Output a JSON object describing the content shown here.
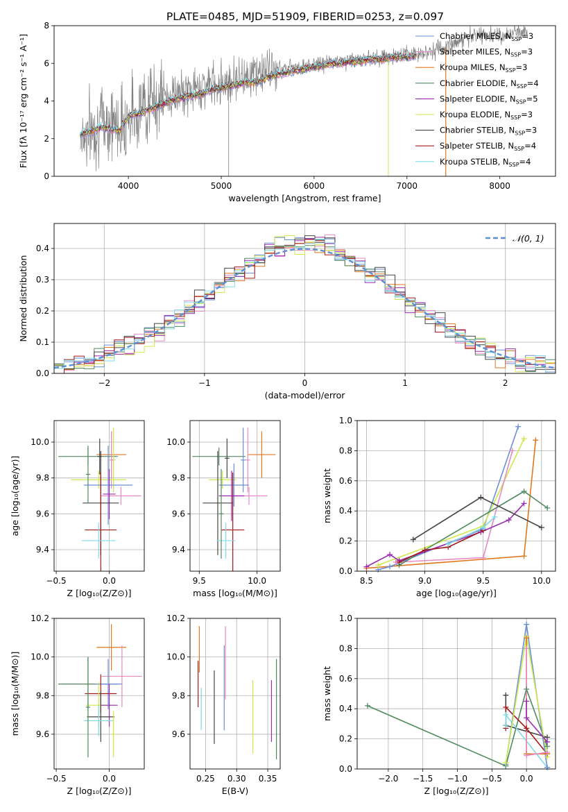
{
  "figure": {
    "title": "PLATE=0485, MJD=51909, FIBERID=0253, z=0.097"
  },
  "chart_data": [
    {
      "id": "spectrum",
      "type": "line",
      "xlabel": "wavelength [Angstrom, rest frame]",
      "ylabel": "Flux [fλ 10⁻¹⁷ erg cm⁻² s⁻¹ A⁻¹]",
      "xlim": [
        3200,
        8600
      ],
      "ylim": [
        0,
        8
      ],
      "xticks": [
        4000,
        5000,
        6000,
        7000,
        8000
      ],
      "yticks": [
        0,
        2,
        4,
        6,
        8
      ],
      "xticklabels": [
        "4000",
        "5000",
        "6000",
        "7000",
        "8000"
      ],
      "yticklabels": [
        "0",
        "2",
        "4",
        "6",
        "8"
      ],
      "grid": false,
      "legend_position": "right",
      "data_color": "#808080",
      "data_x": [
        3480,
        3600,
        3700,
        3800,
        3900,
        4000,
        4100,
        4200,
        4300,
        4400,
        4500,
        4600,
        4700,
        4800,
        4900,
        5000,
        5100,
        5200,
        5300,
        5400,
        5500,
        5600,
        5700,
        5800,
        5900,
        6000,
        6100,
        6200,
        6300,
        6400,
        6500,
        6600,
        6700,
        6800,
        6900,
        7000,
        7100,
        7200,
        7300,
        7400,
        7500,
        7600,
        7700,
        7800,
        7900,
        8000,
        8100,
        8200,
        8300
      ],
      "data_y": [
        2.1,
        2.5,
        2.8,
        3.0,
        2.7,
        3.2,
        3.5,
        3.9,
        4.1,
        4.2,
        4.3,
        4.4,
        4.6,
        4.8,
        4.9,
        5.0,
        5.1,
        5.3,
        5.4,
        5.5,
        5.6,
        5.7,
        5.8,
        5.9,
        5.8,
        5.9,
        6.0,
        6.1,
        6.1,
        6.2,
        6.2,
        6.3,
        6.3,
        6.4,
        6.4,
        6.4,
        6.5,
        6.6,
        6.7,
        6.8,
        7.1,
        7.3,
        7.4,
        7.5,
        7.5,
        7.4,
        7.5,
        7.7,
        7.6
      ],
      "model_x": [
        3480,
        3600,
        3700,
        3800,
        3900,
        4000,
        4100,
        4200,
        4300,
        4400,
        4500,
        4600,
        4700,
        4800,
        4900,
        5000,
        5100,
        5200,
        5300,
        5400,
        5500,
        5600,
        5700,
        5800,
        5900,
        6000,
        6100,
        6200,
        6300,
        6400,
        6500,
        6600,
        6700,
        6800,
        6900,
        7000,
        7100
      ],
      "model_y": [
        2.2,
        2.4,
        2.6,
        2.5,
        2.4,
        3.2,
        3.3,
        3.5,
        3.7,
        3.9,
        4.1,
        4.2,
        4.3,
        4.4,
        4.6,
        4.7,
        4.8,
        4.9,
        5.0,
        5.0,
        5.3,
        5.4,
        5.5,
        5.6,
        5.7,
        5.8,
        5.9,
        6.0,
        6.0,
        6.1,
        6.1,
        6.2,
        6.2,
        6.3,
        6.3,
        6.3,
        6.4
      ],
      "series": [
        {
          "name": "Chabrier MILES, N_SSP=3",
          "label_main": "Chabrier MILES, N",
          "label_sub": "SSP",
          "label_tail": "=3",
          "color": "#6a8fd6"
        },
        {
          "name": "Salpeter MILES, N_SSP=3",
          "label_main": "Salpeter MILES, N",
          "label_sub": "SSP",
          "label_tail": "=3",
          "color": "#e78ac3"
        },
        {
          "name": "Kroupa MILES, N_SSP=3",
          "label_main": "Kroupa MILES, N",
          "label_sub": "SSP",
          "label_tail": "=3",
          "color": "#e0771e"
        },
        {
          "name": "Chabrier ELODIE, N_SSP=4",
          "label_main": "Chabrier ELODIE, N",
          "label_sub": "SSP",
          "label_tail": "=4",
          "color": "#4f8a5e"
        },
        {
          "name": "Salpeter ELODIE, N_SSP=5",
          "label_main": "Salpeter ELODIE, N",
          "label_sub": "SSP",
          "label_tail": "=5",
          "color": "#9a2ab0"
        },
        {
          "name": "Kroupa ELODIE, N_SSP=3",
          "label_main": "Kroupa ELODIE, N",
          "label_sub": "SSP",
          "label_tail": "=3",
          "color": "#cde84a"
        },
        {
          "name": "Chabrier STELIB, N_SSP=3",
          "label_main": "Chabrier STELIB, N",
          "label_sub": "SSP",
          "label_tail": "=3",
          "color": "#444444"
        },
        {
          "name": "Salpeter STELIB, N_SSP=4",
          "label_main": "Salpeter STELIB, N",
          "label_sub": "SSP",
          "label_tail": "=4",
          "color": "#a01818"
        },
        {
          "name": "Kroupa STELIB, N_SSP=4",
          "label_main": "Kroupa STELIB, N",
          "label_sub": "SSP",
          "label_tail": "=4",
          "color": "#7fd9e8"
        }
      ]
    },
    {
      "id": "residuals",
      "type": "line",
      "xlabel": "(data-model)/error",
      "ylabel": "Normed distribution",
      "xlim": [
        -2.5,
        2.5
      ],
      "ylim": [
        0,
        0.48
      ],
      "xticks": [
        -2,
        -1,
        0,
        1,
        2
      ],
      "yticks": [
        0,
        0.1,
        0.2,
        0.3,
        0.4
      ],
      "xticklabels": [
        "−2",
        "−1",
        "0",
        "1",
        "2"
      ],
      "yticklabels": [
        "0.0",
        "0.1",
        "0.2",
        "0.3",
        "0.4"
      ],
      "grid": true,
      "legend_position": "top-right",
      "gaussian_label": "𝒩(0, 1)",
      "gaussian_color": "#5b8fd6"
    },
    {
      "id": "age-vs-Z",
      "type": "scatter",
      "xlabel": "Z [log₁₀(Z/Z⊙)]",
      "ylabel": "age  [log₁₀(age/yr)]",
      "xlim": [
        -0.52,
        0.33
      ],
      "ylim": [
        9.28,
        10.12
      ],
      "xticks": [
        -0.5,
        0.0
      ],
      "xticklabels": [
        "−0.5",
        "0.0"
      ],
      "yticks": [
        9.4,
        9.6,
        9.8,
        10.0
      ],
      "yticklabels": [
        "9.4",
        "9.6",
        "9.8",
        "10.0"
      ],
      "grid": true,
      "points": [
        {
          "x": 0.02,
          "y": 9.93,
          "xerr": 0.14,
          "yerr": 0.13,
          "color": "#e0771e"
        },
        {
          "x": -0.2,
          "y": 9.92,
          "xerr": 0.28,
          "yerr": 0.05,
          "color": "#4f8a5e"
        },
        {
          "x": -0.09,
          "y": 9.92,
          "xerr": 0.02,
          "yerr": 0.1,
          "color": "#444444"
        },
        {
          "x": 0.04,
          "y": 9.9,
          "xerr": 0.02,
          "yerr": 0.18,
          "color": "#cde84a"
        },
        {
          "x": 0.02,
          "y": 9.9,
          "xerr": 0.02,
          "yerr": 0.16,
          "color": "#e78ac3"
        },
        {
          "x": -0.1,
          "y": 9.79,
          "xerr": 0.26,
          "yerr": 0.05,
          "color": "#cde84a"
        },
        {
          "x": -0.01,
          "y": 9.76,
          "xerr": 0.23,
          "yerr": 0.22,
          "color": "#6a8fd6"
        },
        {
          "x": 0.11,
          "y": 9.7,
          "xerr": 0.19,
          "yerr": 0.05,
          "color": "#e78ac3"
        },
        {
          "x": 0.0,
          "y": 9.71,
          "xerr": 0.06,
          "yerr": 0.14,
          "color": "#9a2ab0"
        },
        {
          "x": -0.08,
          "y": 9.66,
          "xerr": 0.17,
          "yerr": 0.29,
          "color": "#444444"
        },
        {
          "x": -0.08,
          "y": 9.51,
          "xerr": 0.15,
          "yerr": 0.32,
          "color": "#a01818"
        },
        {
          "x": -0.1,
          "y": 9.45,
          "xerr": 0.16,
          "yerr": 0.1,
          "color": "#7fd9e8"
        },
        {
          "x": -0.2,
          "y": 9.82,
          "xerr": 0.02,
          "yerr": 0.16,
          "color": "#4f8a5e"
        }
      ]
    },
    {
      "id": "age-vs-mass",
      "type": "scatter",
      "xlabel": "mass [log₁₀(M/M⊙)]",
      "ylabel": "",
      "xlim": [
        9.42,
        10.2
      ],
      "ylim": [
        9.28,
        10.12
      ],
      "xticks": [
        9.5,
        10.0
      ],
      "xticklabels": [
        "9.5",
        "10.0"
      ],
      "yticks": [
        9.4,
        9.6,
        9.8,
        10.0
      ],
      "yticklabels": [
        "9.4",
        "9.6",
        "9.8",
        "10.0"
      ],
      "grid": true,
      "points": [
        {
          "x": 10.04,
          "y": 9.93,
          "xerr": 0.12,
          "yerr": 0.13,
          "color": "#e0771e"
        },
        {
          "x": 9.67,
          "y": 9.92,
          "xerr": 0.23,
          "yerr": 0.05,
          "color": "#4f8a5e"
        },
        {
          "x": 9.74,
          "y": 9.91,
          "xerr": 0.02,
          "yerr": 0.11,
          "color": "#444444"
        },
        {
          "x": 9.92,
          "y": 9.9,
          "xerr": 0.02,
          "yerr": 0.18,
          "color": "#e78ac3"
        },
        {
          "x": 9.88,
          "y": 9.9,
          "xerr": 0.02,
          "yerr": 0.18,
          "color": "#6a8fd6"
        },
        {
          "x": 9.7,
          "y": 9.79,
          "xerr": 0.12,
          "yerr": 0.05,
          "color": "#cde84a"
        },
        {
          "x": 9.8,
          "y": 9.76,
          "xerr": 0.13,
          "yerr": 0.12,
          "color": "#6a8fd6"
        },
        {
          "x": 9.93,
          "y": 9.7,
          "xerr": 0.16,
          "yerr": 0.05,
          "color": "#e78ac3"
        },
        {
          "x": 9.78,
          "y": 9.7,
          "xerr": 0.11,
          "yerr": 0.14,
          "color": "#9a2ab0"
        },
        {
          "x": 9.66,
          "y": 9.66,
          "xerr": 0.13,
          "yerr": 0.29,
          "color": "#444444"
        },
        {
          "x": 9.79,
          "y": 9.51,
          "xerr": 0.1,
          "yerr": 0.32,
          "color": "#a01818"
        },
        {
          "x": 9.73,
          "y": 9.45,
          "xerr": 0.08,
          "yerr": 0.1,
          "color": "#7fd9e8"
        },
        {
          "x": 9.69,
          "y": 9.6,
          "xerr": 0.02,
          "yerr": 0.25,
          "color": "#4f8a5e"
        }
      ]
    },
    {
      "id": "weight-vs-age",
      "type": "line",
      "xlabel": "age  [log₁₀(age/yr)]",
      "ylabel": "mass weight",
      "xlim": [
        8.42,
        10.12
      ],
      "ylim": [
        0,
        1.0
      ],
      "xticks": [
        8.5,
        9.0,
        9.5,
        10.0
      ],
      "xticklabels": [
        "8.5",
        "9.0",
        "9.5",
        "10.0"
      ],
      "yticks": [
        0,
        0.2,
        0.4,
        0.6,
        0.8,
        1.0
      ],
      "yticklabels": [
        "0.0",
        "0.2",
        "0.4",
        "0.6",
        "0.8",
        "1.0"
      ],
      "grid": true,
      "series": [
        {
          "color": "#e0771e",
          "x": [
            8.5,
            9.85,
            9.95
          ],
          "y": [
            0.02,
            0.1,
            0.87
          ]
        },
        {
          "color": "#6a8fd6",
          "x": [
            8.6,
            8.7,
            9.5,
            9.8
          ],
          "y": [
            0.01,
            0.03,
            0.28,
            0.96
          ]
        },
        {
          "color": "#cde84a",
          "x": [
            8.6,
            9.5,
            9.85
          ],
          "y": [
            0.04,
            0.3,
            0.88
          ]
        },
        {
          "color": "#e78ac3",
          "x": [
            8.75,
            9.5,
            9.75
          ],
          "y": [
            0.06,
            0.09,
            0.8
          ]
        },
        {
          "color": "#4f8a5e",
          "x": [
            8.78,
            9.85,
            10.05
          ],
          "y": [
            0.04,
            0.53,
            0.42
          ]
        },
        {
          "color": "#9a2ab0",
          "x": [
            8.5,
            8.7,
            8.78,
            9.48,
            9.72,
            9.85
          ],
          "y": [
            0.03,
            0.11,
            0.07,
            0.26,
            0.34,
            0.45
          ]
        },
        {
          "color": "#444444",
          "x": [
            8.9,
            9.48,
            10.0
          ],
          "y": [
            0.21,
            0.49,
            0.29
          ]
        },
        {
          "color": "#a01818",
          "x": [
            8.78,
            9.0,
            9.2,
            9.5
          ],
          "y": [
            0.06,
            0.14,
            0.16,
            0.27
          ]
        },
        {
          "color": "#7fd9e8",
          "x": [
            9.2,
            9.5,
            9.6
          ],
          "y": [
            0.18,
            0.29,
            0.36
          ]
        }
      ]
    },
    {
      "id": "mass-vs-Z",
      "type": "scatter",
      "xlabel": "Z [log₁₀(Z/Z⊙)]",
      "ylabel": "mass [log₁₀(M/M⊙)]",
      "xlim": [
        -0.52,
        0.33
      ],
      "ylim": [
        9.42,
        10.2
      ],
      "xticks": [
        -0.5,
        0.0
      ],
      "xticklabels": [
        "−0.5",
        "0.0"
      ],
      "yticks": [
        9.6,
        9.8,
        10.0,
        10.2
      ],
      "yticklabels": [
        "9.6",
        "9.8",
        "10.0",
        "10.2"
      ],
      "grid": true,
      "points": [
        {
          "x": 0.02,
          "y": 10.05,
          "xerr": 0.14,
          "yerr": 0.12,
          "color": "#e0771e"
        },
        {
          "x": 0.12,
          "y": 9.9,
          "xerr": 0.19,
          "yerr": 0.16,
          "color": "#e78ac3"
        },
        {
          "x": -0.2,
          "y": 9.86,
          "xerr": 0.28,
          "yerr": 0.14,
          "color": "#4f8a5e"
        },
        {
          "x": -0.01,
          "y": 9.86,
          "xerr": 0.13,
          "yerr": 0.13,
          "color": "#6a8fd6"
        },
        {
          "x": -0.08,
          "y": 9.81,
          "xerr": 0.15,
          "yerr": 0.1,
          "color": "#a01818"
        },
        {
          "x": -0.1,
          "y": 9.75,
          "xerr": 0.12,
          "yerr": 0.12,
          "color": "#cde84a"
        },
        {
          "x": 0.0,
          "y": 9.75,
          "xerr": 0.08,
          "yerr": 0.11,
          "color": "#9a2ab0"
        },
        {
          "x": -0.08,
          "y": 9.69,
          "xerr": 0.13,
          "yerr": 0.13,
          "color": "#444444"
        },
        {
          "x": -0.1,
          "y": 9.67,
          "xerr": 0.14,
          "yerr": 0.08,
          "color": "#7fd9e8"
        },
        {
          "x": -0.2,
          "y": 9.74,
          "xerr": 0.02,
          "yerr": 0.26,
          "color": "#4f8a5e"
        },
        {
          "x": 0.04,
          "y": 9.6,
          "xerr": 0.02,
          "yerr": 0.12,
          "color": "#cde84a"
        }
      ]
    },
    {
      "id": "mass-vs-ebv",
      "type": "scatter",
      "xlabel": "E(B-V)",
      "ylabel": "",
      "xlim": [
        0.225,
        0.37
      ],
      "ylim": [
        9.42,
        10.2
      ],
      "xticks": [
        0.25,
        0.3,
        0.35
      ],
      "xticklabels": [
        "0.25",
        "0.30",
        "0.35"
      ],
      "yticks": [
        9.6,
        9.8,
        10.0,
        10.2
      ],
      "yticklabels": [
        "9.6",
        "9.8",
        "10.0",
        "10.2"
      ],
      "grid": true,
      "points": [
        {
          "x": 0.238,
          "y": 9.86,
          "yerr": 0.12,
          "color": "#a01818"
        },
        {
          "x": 0.24,
          "y": 10.04,
          "yerr": 0.12,
          "color": "#e0771e"
        },
        {
          "x": 0.243,
          "y": 9.73,
          "yerr": 0.11,
          "color": "#7fd9e8"
        },
        {
          "x": 0.264,
          "y": 9.74,
          "yerr": 0.19,
          "color": "#444444"
        },
        {
          "x": 0.28,
          "y": 9.84,
          "yerr": 0.22,
          "color": "#6a8fd6"
        },
        {
          "x": 0.282,
          "y": 9.97,
          "yerr": 0.19,
          "color": "#e78ac3"
        },
        {
          "x": 0.326,
          "y": 9.69,
          "yerr": 0.19,
          "color": "#cde84a"
        },
        {
          "x": 0.356,
          "y": 9.72,
          "yerr": 0.16,
          "color": "#9a2ab0"
        },
        {
          "x": 0.364,
          "y": 9.73,
          "yerr": 0.26,
          "color": "#4f8a5e"
        }
      ]
    },
    {
      "id": "weight-vs-Z",
      "type": "line",
      "xlabel": "Z [log₁₀(Z/Z⊙)]",
      "ylabel": "mass weight",
      "xlim": [
        -2.45,
        0.42
      ],
      "ylim": [
        0,
        1.0
      ],
      "xticks": [
        -2.0,
        -1.5,
        -1.0,
        -0.5,
        0.0
      ],
      "xticklabels": [
        "−2.0",
        "−1.5",
        "−1.0",
        "−0.5",
        "0.0"
      ],
      "yticks": [
        0,
        0.2,
        0.4,
        0.6,
        0.8,
        1.0
      ],
      "yticklabels": [
        "0.0",
        "0.2",
        "0.4",
        "0.6",
        "0.8",
        "1.0"
      ],
      "grid": true,
      "series": [
        {
          "color": "#4f8a5e",
          "x": [
            -2.3,
            -0.3,
            0.0,
            0.3
          ],
          "y": [
            0.42,
            0.02,
            0.53,
            0.15
          ]
        },
        {
          "color": "#444444",
          "x": [
            -0.3,
            -0.3,
            0.3
          ],
          "y": [
            0.49,
            0.29,
            0.21
          ]
        },
        {
          "color": "#a01818",
          "x": [
            -0.3,
            -0.3,
            0.0,
            0.3
          ],
          "y": [
            0.27,
            0.41,
            0.27,
            0.1
          ]
        },
        {
          "color": "#7fd9e8",
          "x": [
            -0.3,
            -0.3,
            0.3
          ],
          "y": [
            0.29,
            0.36,
            0.01
          ]
        },
        {
          "color": "#6a8fd6",
          "x": [
            -0.3,
            0.0,
            0.3
          ],
          "y": [
            0.03,
            0.96,
            0.01
          ]
        },
        {
          "color": "#cde84a",
          "x": [
            -0.3,
            0.0,
            0.3
          ],
          "y": [
            0.04,
            0.88,
            0.08
          ]
        },
        {
          "color": "#e0771e",
          "x": [
            0.0,
            0.0,
            0.3
          ],
          "y": [
            0.87,
            0.1,
            0.1
          ]
        },
        {
          "color": "#e78ac3",
          "x": [
            0.0,
            0.0,
            0.3
          ],
          "y": [
            0.8,
            0.09,
            0.11
          ]
        },
        {
          "color": "#9a2ab0",
          "x": [
            0.0,
            0.0,
            0.3
          ],
          "y": [
            0.45,
            0.34,
            0.18
          ]
        }
      ]
    }
  ]
}
